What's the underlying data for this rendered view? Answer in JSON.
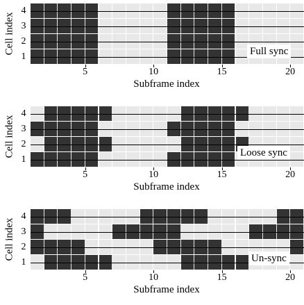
{
  "y_label": "Cell index",
  "x_label": "Subframe index",
  "row_labels": [
    "4",
    "3",
    "2",
    "1"
  ],
  "x_ticks": [
    "5",
    "10",
    "15",
    "20"
  ],
  "colors": {
    "active": "#333333",
    "idle": "#e8e8e8"
  },
  "panels": [
    {
      "tag": "Full sync",
      "rows": [
        {
          "cell": "4",
          "active_subframes": [
            1,
            2,
            3,
            4,
            5,
            11,
            12,
            13,
            14,
            15
          ]
        },
        {
          "cell": "3",
          "active_subframes": [
            1,
            2,
            3,
            4,
            5,
            11,
            12,
            13,
            14,
            15
          ]
        },
        {
          "cell": "2",
          "active_subframes": [
            1,
            2,
            3,
            4,
            5,
            11,
            12,
            13,
            14,
            15
          ]
        },
        {
          "cell": "1",
          "active_subframes": [
            1,
            2,
            3,
            4,
            5,
            11,
            12,
            13,
            14,
            15
          ]
        }
      ]
    },
    {
      "tag": "Loose sync",
      "rows": [
        {
          "cell": "4",
          "active_subframes": [
            2,
            3,
            4,
            5,
            6,
            12,
            13,
            14,
            15,
            16
          ]
        },
        {
          "cell": "3",
          "active_subframes": [
            1,
            2,
            3,
            4,
            5,
            11,
            12,
            13,
            14,
            15
          ]
        },
        {
          "cell": "2",
          "active_subframes": [
            2,
            3,
            4,
            5,
            6,
            12,
            13,
            14,
            15,
            16
          ]
        },
        {
          "cell": "1",
          "active_subframes": [
            1,
            2,
            3,
            4,
            5,
            11,
            12,
            13,
            14,
            15
          ]
        }
      ]
    },
    {
      "tag": "Un-sync",
      "rows": [
        {
          "cell": "4",
          "active_subframes": [
            1,
            2,
            3,
            9,
            10,
            11,
            12,
            13,
            19,
            20
          ]
        },
        {
          "cell": "3",
          "active_subframes": [
            1,
            7,
            8,
            9,
            10,
            11,
            17,
            18,
            19,
            20
          ]
        },
        {
          "cell": "2",
          "active_subframes": [
            1,
            2,
            3,
            4,
            10,
            11,
            12,
            13,
            14,
            20
          ]
        },
        {
          "cell": "1",
          "active_subframes": [
            2,
            3,
            4,
            5,
            6,
            12,
            13,
            14,
            15,
            16
          ]
        }
      ]
    }
  ]
}
